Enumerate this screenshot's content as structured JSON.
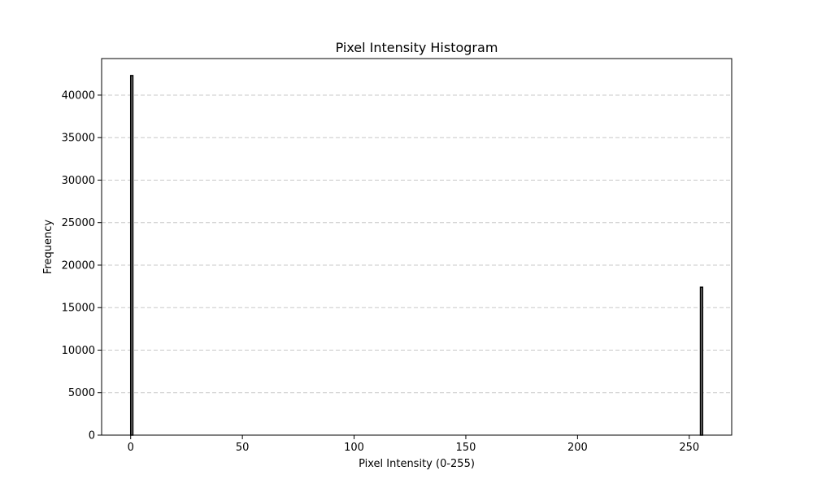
{
  "chart_data": {
    "type": "bar",
    "title": "Pixel Intensity Histogram",
    "xlabel": "Pixel Intensity (0-255)",
    "ylabel": "Frequency",
    "xlim": [
      -13,
      269
    ],
    "ylim": [
      0,
      44300
    ],
    "x_ticks": [
      0,
      50,
      100,
      150,
      200,
      250
    ],
    "y_ticks": [
      0,
      5000,
      10000,
      15000,
      20000,
      25000,
      30000,
      35000,
      40000
    ],
    "bin_width": 1,
    "bars": [
      {
        "x": 0,
        "value": 42300
      },
      {
        "x": 255,
        "value": 17400
      }
    ],
    "grid": {
      "axis": "y",
      "style": "dashed",
      "color": "#c8c8c8"
    },
    "bar_color": "#808080",
    "bar_edge_color": "#000000"
  }
}
